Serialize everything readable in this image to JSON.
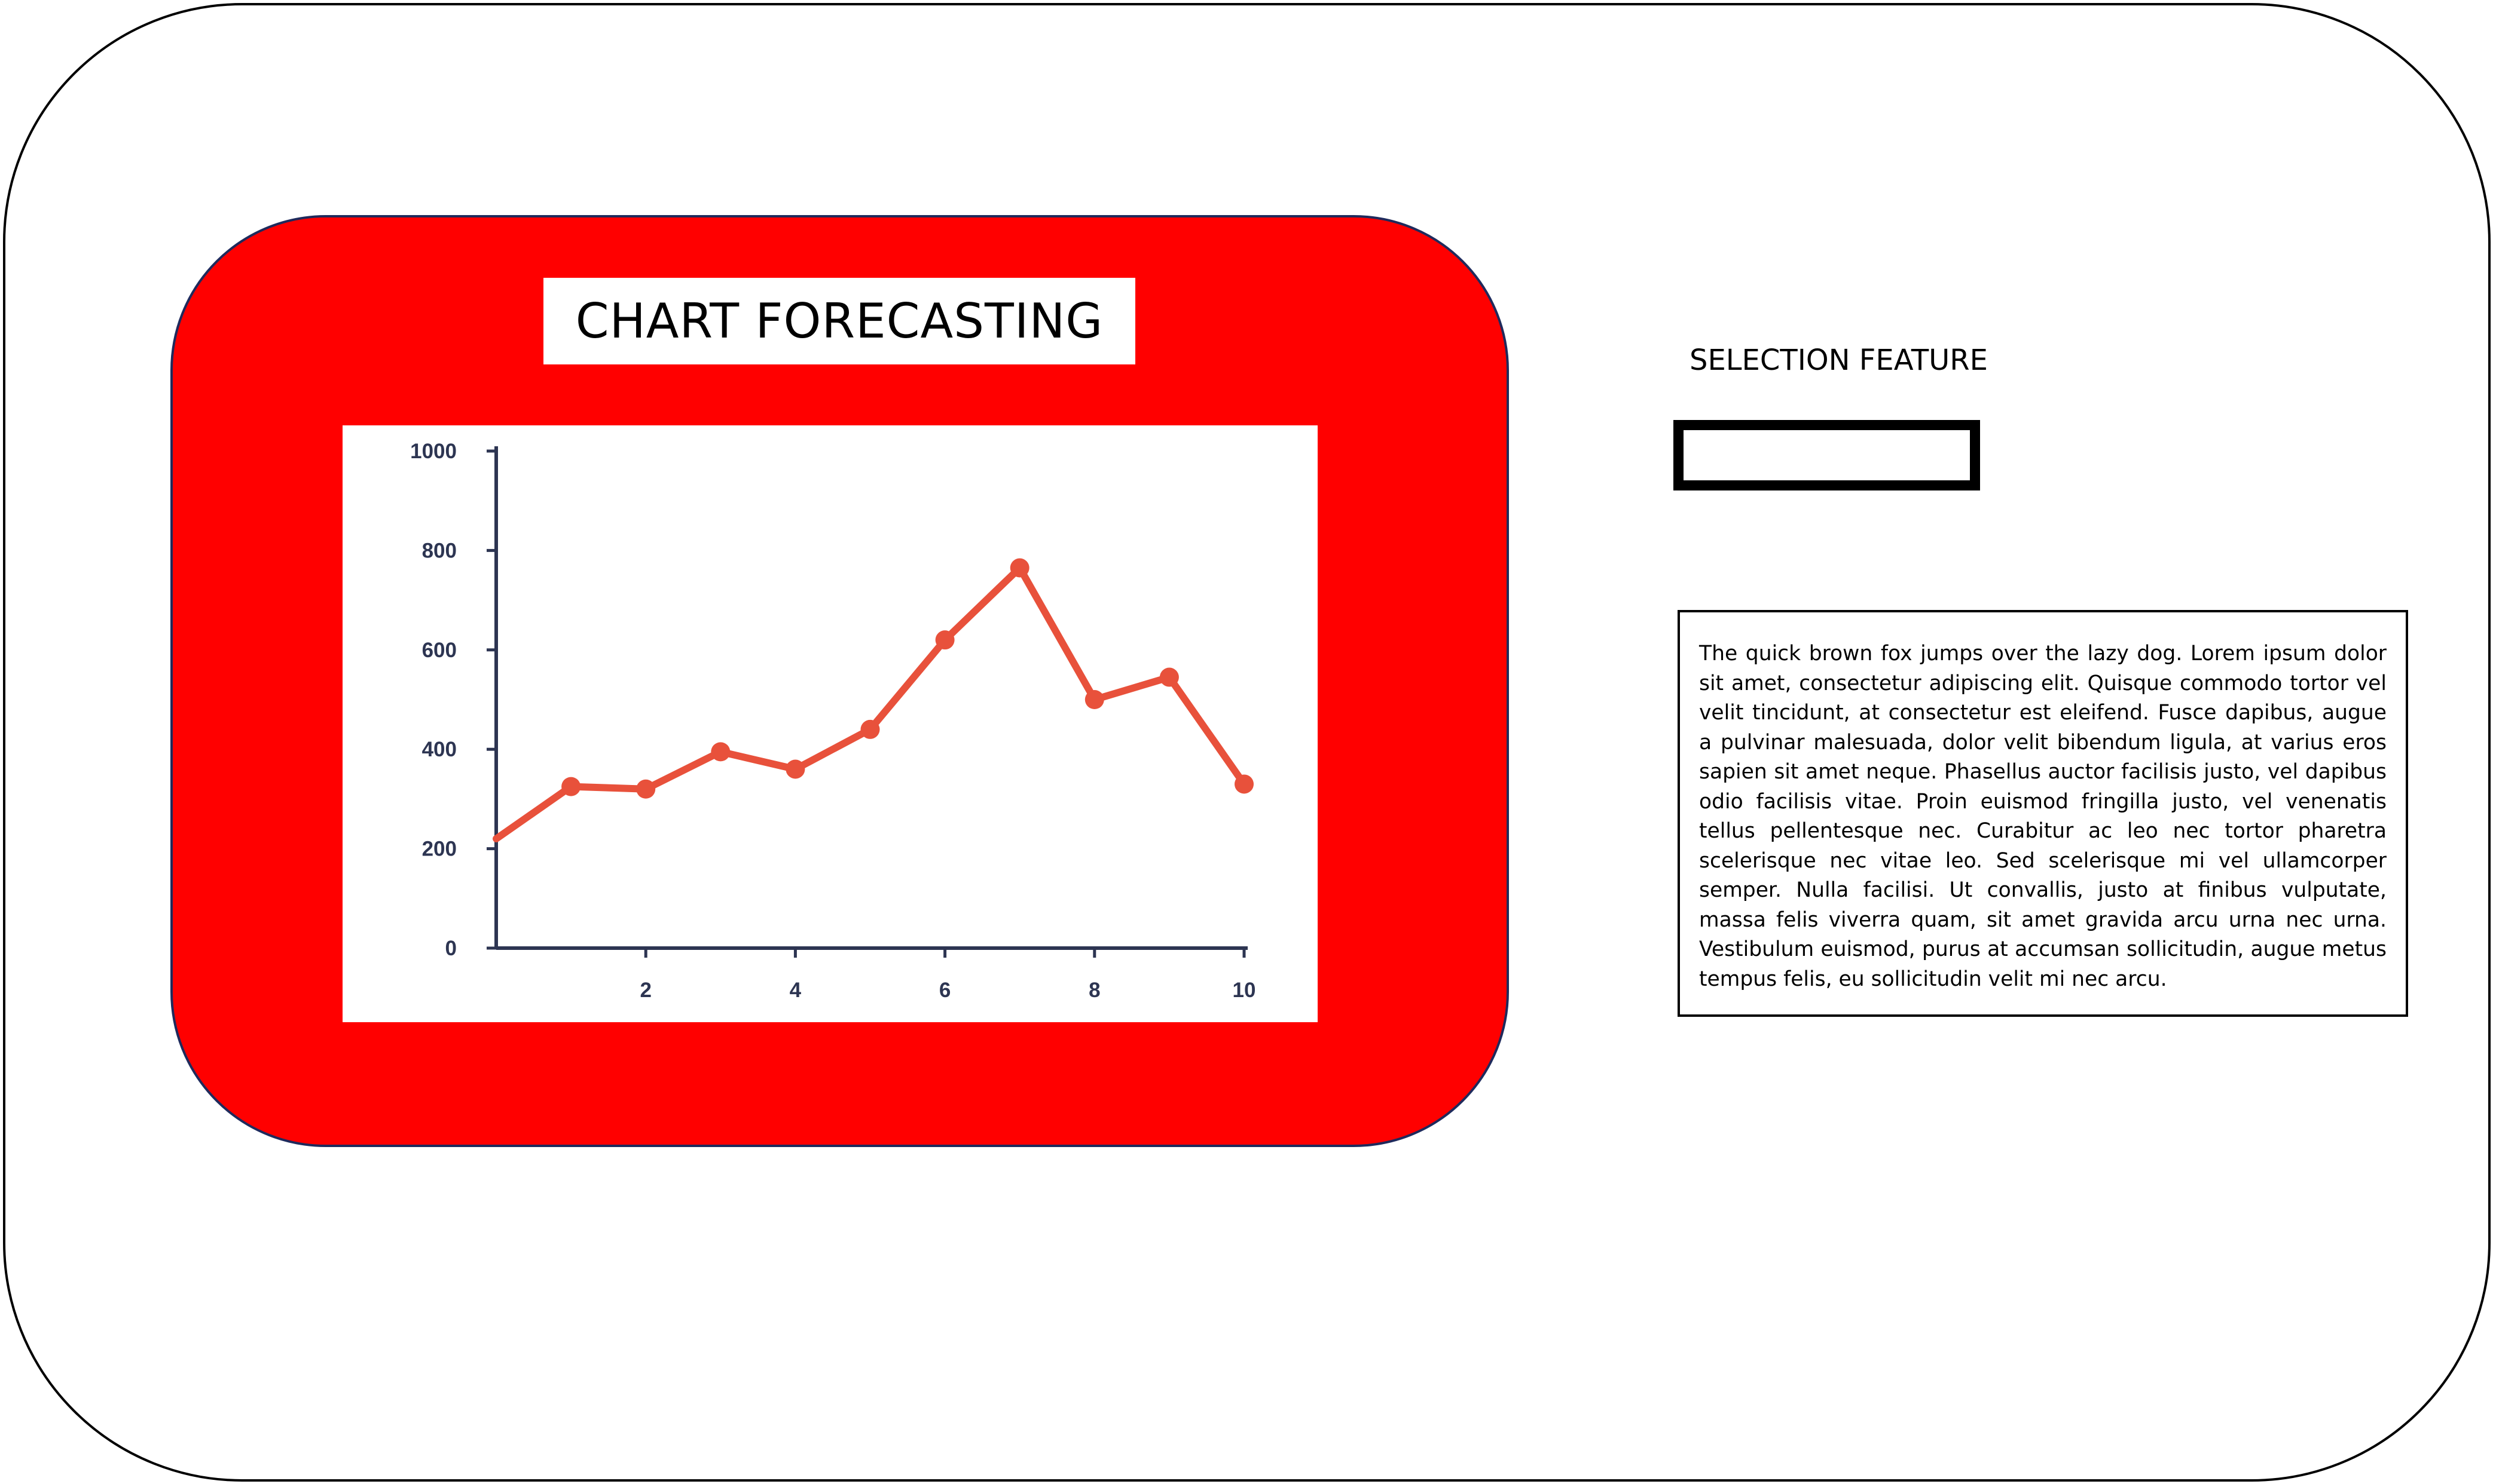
{
  "chart_panel": {
    "title": "CHART FORECASTING",
    "panel_color": "#ff0000"
  },
  "chart_data": {
    "type": "line",
    "title": "CHART FORECASTING",
    "xlabel": "",
    "ylabel": "",
    "x": [
      0,
      1,
      2,
      3,
      4,
      5,
      6,
      7,
      8,
      9,
      10
    ],
    "series": [
      {
        "values": [
          220,
          325,
          320,
          395,
          360,
          440,
          620,
          765,
          500,
          545,
          330
        ],
        "color": "#e8513b"
      }
    ],
    "xticks": [
      "2",
      "4",
      "6",
      "8",
      "10"
    ],
    "yticks": [
      "0",
      "200",
      "400",
      "600",
      "800",
      "1000"
    ],
    "xlim": [
      0,
      10
    ],
    "ylim": [
      0,
      1000
    ],
    "grid": false,
    "axis_color": "#2d3552"
  },
  "selection": {
    "label": "SELECTION FEATURE",
    "value": "",
    "placeholder": ""
  },
  "description": {
    "text": "The quick brown fox jumps over the lazy dog. Lorem ipsum dolor sit amet, consectetur adipiscing elit. Quisque commodo tortor vel velit tincidunt, at consectetur est eleifend. Fusce dapibus, augue a pulvinar malesuada, dolor velit bibendum ligula, at varius eros sapien sit amet neque. Phasellus auctor facilisis justo, vel dapibus odio facilisis vitae. Proin euismod fringilla justo, vel venenatis tellus pellentesque nec. Curabitur ac leo nec tortor pharetra scelerisque nec vitae leo. Sed scelerisque mi vel ullamcorper semper. Nulla facilisi. Ut convallis, justo at finibus vulputate, massa felis viverra quam, sit amet gravida arcu urna nec urna. Vestibulum euismod, purus at accumsan sollicitudin, augue metus tempus felis, eu sollicitudin velit mi nec arcu."
  }
}
